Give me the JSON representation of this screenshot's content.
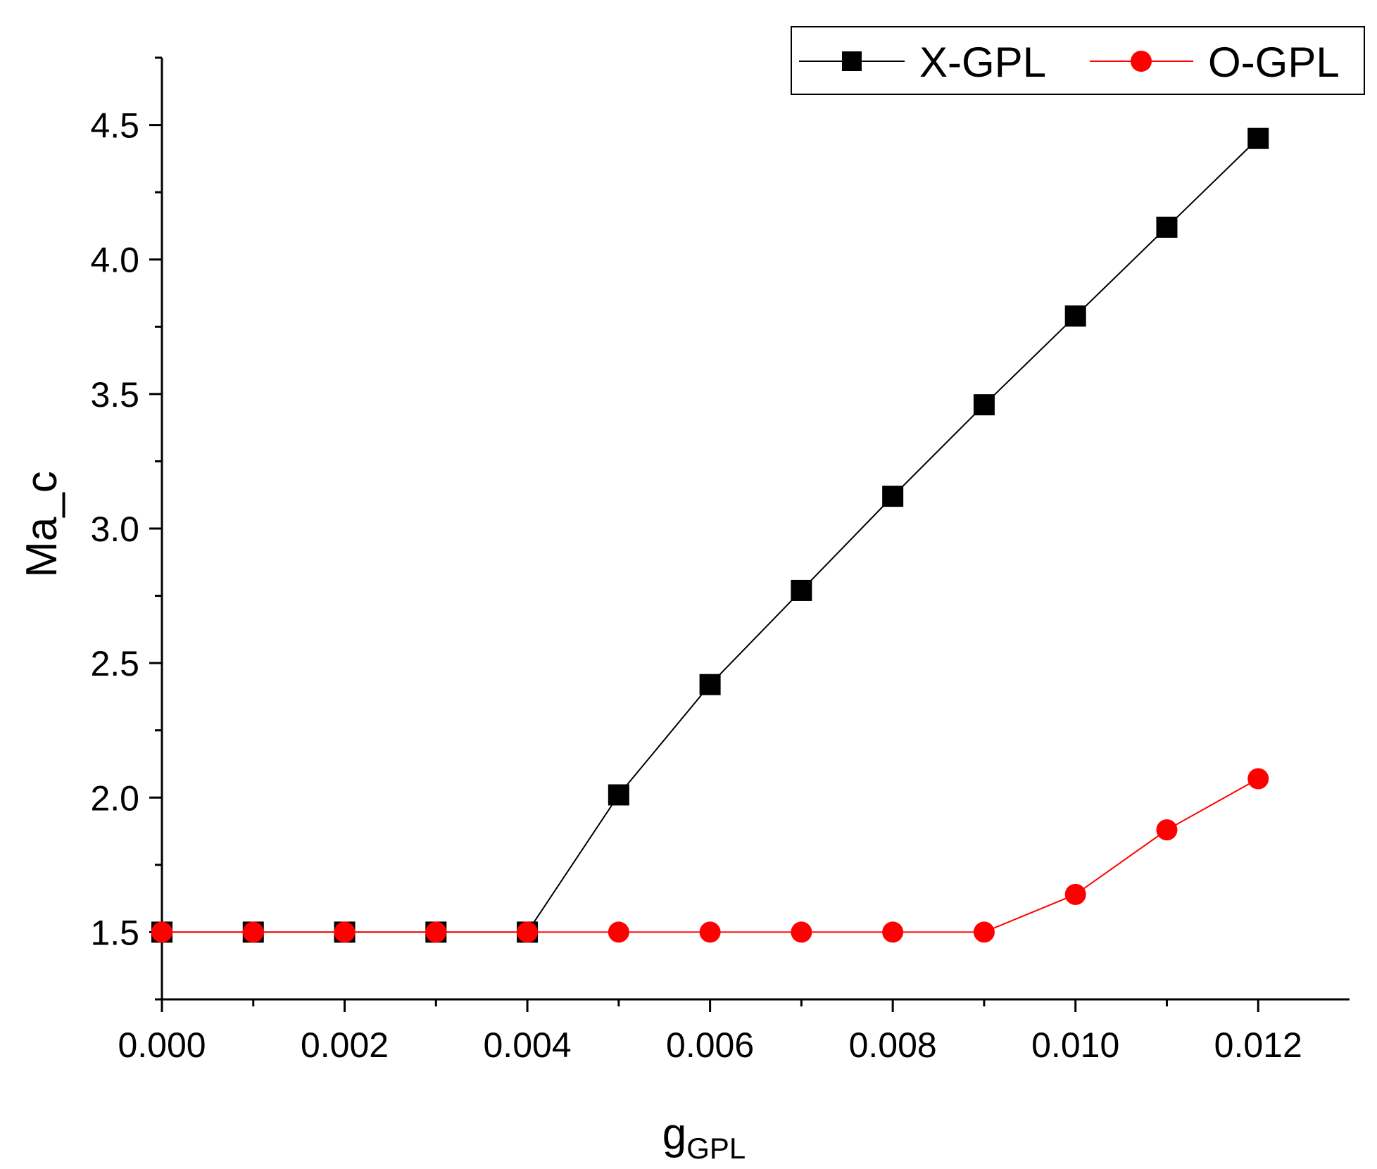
{
  "chart_data": {
    "type": "line",
    "xlabel": "g",
    "xlabel_sub": "GPL",
    "ylabel": "Ma_c",
    "xlim": [
      0,
      0.013
    ],
    "ylim": [
      1.25,
      4.75
    ],
    "xticks": [
      "0.000",
      "0.002",
      "0.004",
      "0.006",
      "0.008",
      "0.010",
      "0.012"
    ],
    "yticks": [
      "1.5",
      "2.0",
      "2.5",
      "3.0",
      "3.5",
      "4.0",
      "4.5"
    ],
    "legend_position": "top-right",
    "grid": false,
    "x": [
      0.0,
      0.001,
      0.002,
      0.003,
      0.004,
      0.005,
      0.006,
      0.007,
      0.008,
      0.009,
      0.01,
      0.011,
      0.012
    ],
    "series": [
      {
        "name": "X-GPL",
        "color": "#000000",
        "marker": "square",
        "values": [
          1.5,
          1.5,
          1.5,
          1.5,
          1.5,
          2.01,
          2.42,
          2.77,
          3.12,
          3.46,
          3.79,
          4.12,
          4.45
        ]
      },
      {
        "name": "O-GPL",
        "color": "#ff0000",
        "marker": "circle",
        "values": [
          1.5,
          1.5,
          1.5,
          1.5,
          1.5,
          1.5,
          1.5,
          1.5,
          1.5,
          1.5,
          1.64,
          1.88,
          2.07
        ]
      }
    ]
  }
}
